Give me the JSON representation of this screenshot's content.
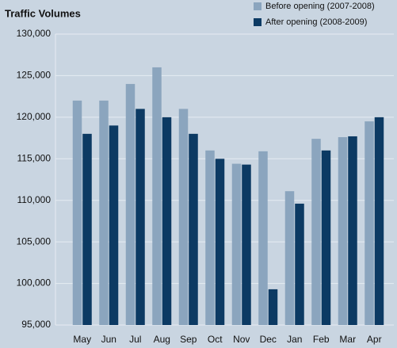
{
  "chart_data": {
    "type": "bar",
    "title": "Traffic Volumes",
    "categories": [
      "May",
      "Jun",
      "Jul",
      "Aug",
      "Sep",
      "Oct",
      "Nov",
      "Dec",
      "Jan",
      "Feb",
      "Mar",
      "Apr"
    ],
    "series": [
      {
        "name": "Before opening (2007-2008)",
        "color": "#8ba5be",
        "values": [
          122000,
          122000,
          124000,
          126000,
          121000,
          116000,
          114400,
          115900,
          111100,
          117400,
          117600,
          119500
        ]
      },
      {
        "name": "After opening (2008-2009)",
        "color": "#0c3a63",
        "values": [
          118000,
          119000,
          121000,
          120000,
          118000,
          115000,
          114300,
          99300,
          109600,
          116000,
          117700,
          120000
        ]
      }
    ],
    "ylim": [
      95000,
      130000
    ],
    "yticks": [
      {
        "value": 95000,
        "label": "95,000"
      },
      {
        "value": 100000,
        "label": "100,000"
      },
      {
        "value": 105000,
        "label": "105,000"
      },
      {
        "value": 110000,
        "label": "110,000"
      },
      {
        "value": 115000,
        "label": "115,000"
      },
      {
        "value": 120000,
        "label": "120,000"
      },
      {
        "value": 125000,
        "label": "125,000"
      },
      {
        "value": 130000,
        "label": "130,000"
      }
    ],
    "grid": true,
    "legend": "top-right"
  }
}
